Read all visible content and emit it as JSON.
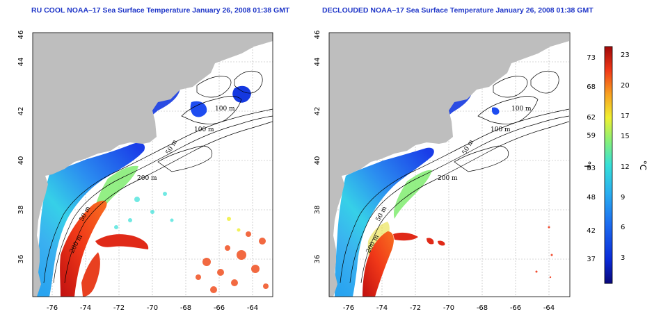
{
  "titles": {
    "left": "RU COOL NOAA–17 Sea Surface Temperature January 26, 2008 01:38 GMT",
    "right": "DECLOUDED NOAA–17 Sea Surface Temperature January 26, 2008 01:38 GMT"
  },
  "axes": {
    "lon_ticks": [
      "-76",
      "-74",
      "-72",
      "-70",
      "-68",
      "-66",
      "-64"
    ],
    "lat_ticks": [
      "36",
      "38",
      "40",
      "42",
      "44",
      "46"
    ]
  },
  "contour_labels": {
    "left": [
      "100 m",
      "100 m",
      "50 m",
      "200 m",
      "50 m",
      "200 m"
    ],
    "right": [
      "100 m",
      "100 m",
      "50 m",
      "200 m",
      "50 m",
      "200 m"
    ]
  },
  "colorbar": {
    "fahrenheit_unit": "°F",
    "celsius_unit": "°C",
    "fahrenheit_ticks": [
      "73",
      "68",
      "62",
      "59",
      "53",
      "48",
      "42",
      "37"
    ],
    "celsius_ticks": [
      "23",
      "20",
      "17",
      "15",
      "12",
      "9",
      "6",
      "3"
    ]
  },
  "colors": {
    "land": "#bebebe",
    "ocean": "#ffffff",
    "title": "#1f36c8",
    "scale": [
      "#08087a",
      "#0a2ad8",
      "#1c6cf0",
      "#29aef0",
      "#36e0d8",
      "#86f07a",
      "#f0f030",
      "#f8a020",
      "#f03818",
      "#a00808"
    ]
  }
}
